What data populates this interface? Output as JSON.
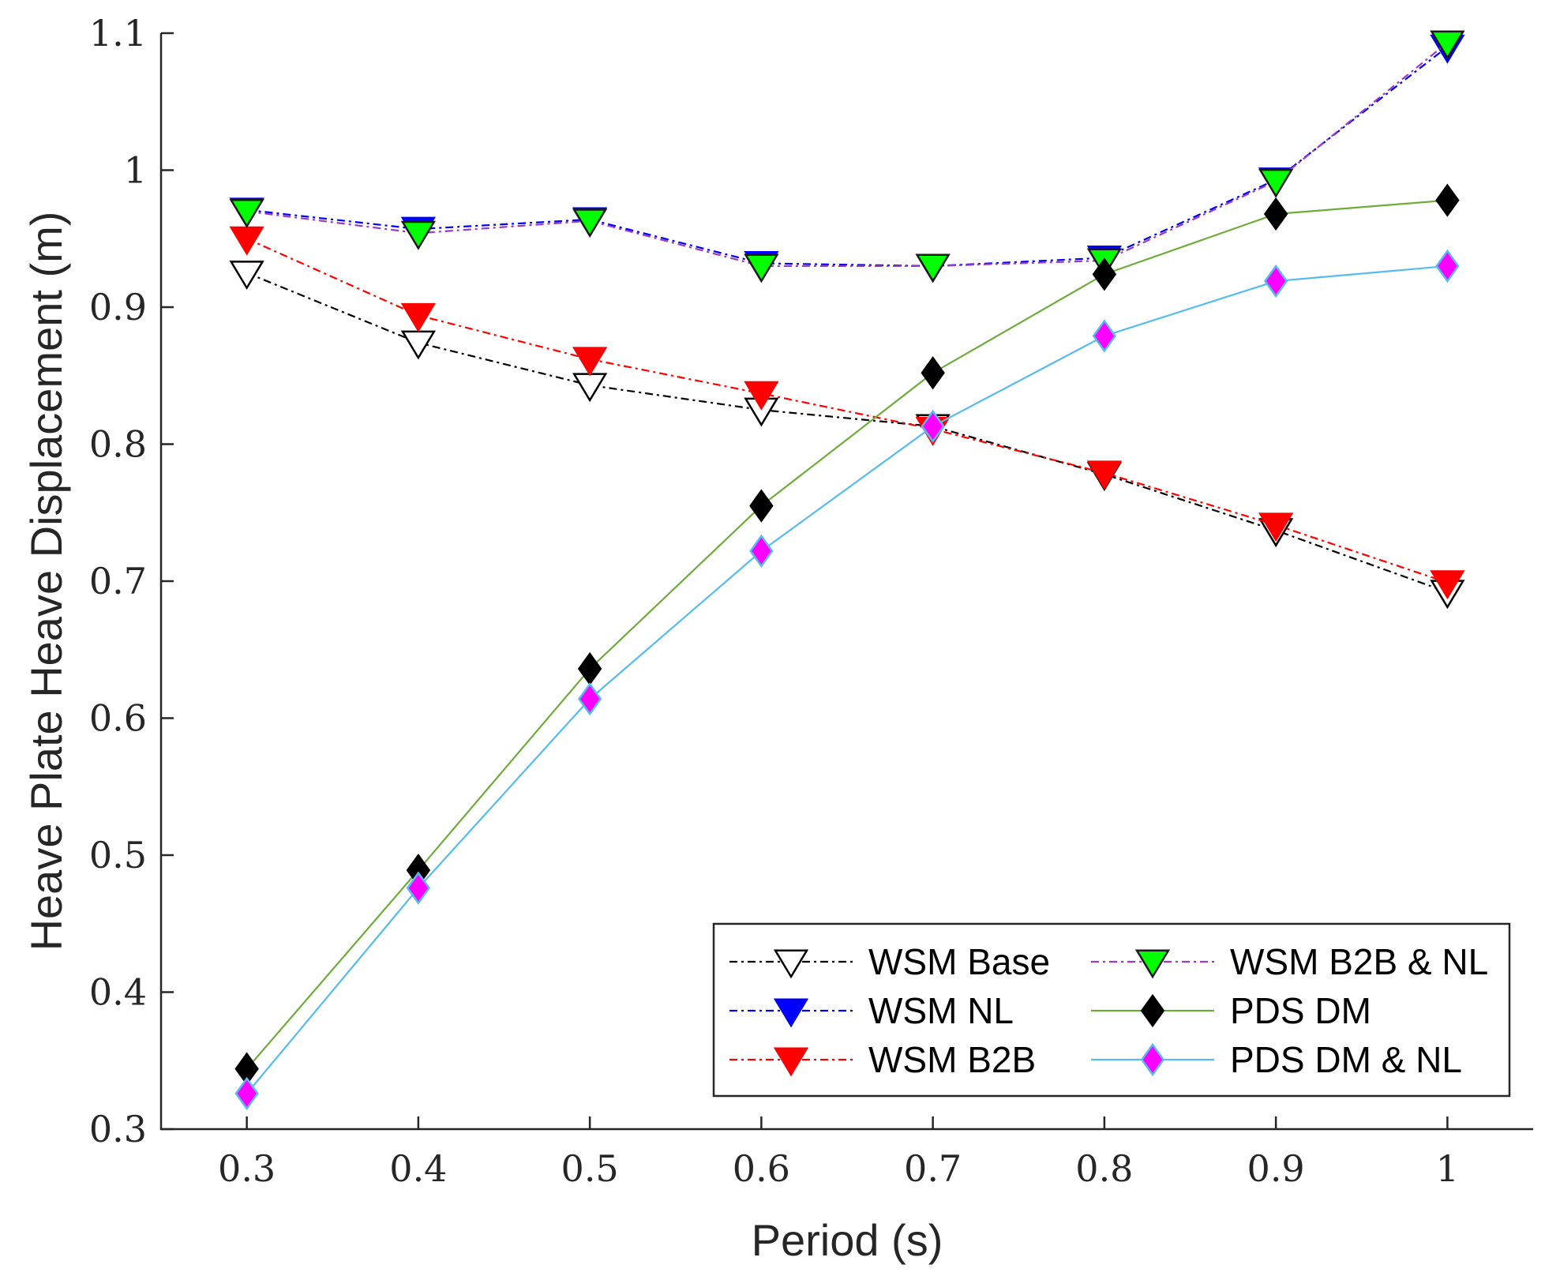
{
  "chart_data": {
    "type": "line",
    "title": "",
    "xlabel": "Period (s)",
    "ylabel": "Heave Plate Heave Displacement (m)",
    "xlim": [
      0.25,
      1.05
    ],
    "ylim": [
      0.3,
      1.1
    ],
    "xticks": [
      0.3,
      0.4,
      0.5,
      0.6,
      0.7,
      0.8,
      0.9,
      1.0
    ],
    "xtick_labels": [
      "0.3",
      "0.4",
      "0.5",
      "0.6",
      "0.7",
      "0.8",
      "0.9",
      "1"
    ],
    "yticks": [
      0.3,
      0.4,
      0.5,
      0.6,
      0.7,
      0.8,
      0.9,
      1.0,
      1.1
    ],
    "ytick_labels": [
      "0.3",
      "0.4",
      "0.5",
      "0.6",
      "0.7",
      "0.8",
      "0.9",
      "1",
      "1.1"
    ],
    "grid": false,
    "legend_location": "bottom-right",
    "legend_columns": 2,
    "x": [
      0.3,
      0.4,
      0.5,
      0.6,
      0.7,
      0.8,
      0.9,
      1.0
    ],
    "series": [
      {
        "name": "WSM Base",
        "line_color": "#000000",
        "line_style": "dashdot",
        "marker": "triangle-down",
        "marker_fill": "#ffffff",
        "marker_edge": "#000000",
        "values": [
          0.925,
          0.874,
          0.843,
          0.825,
          0.813,
          0.778,
          0.737,
          0.692
        ]
      },
      {
        "name": "WSM NL",
        "line_color": "#0000ff",
        "line_style": "dashdot",
        "marker": "triangle-down",
        "marker_fill": "#0000ff",
        "marker_edge": "#0000ff",
        "values": [
          0.971,
          0.957,
          0.964,
          0.932,
          0.93,
          0.936,
          0.993,
          1.09
        ]
      },
      {
        "name": "WSM B2B",
        "line_color": "#ff0000",
        "line_style": "dashdot",
        "marker": "triangle-down",
        "marker_fill": "#ff0000",
        "marker_edge": "#ff0000",
        "values": [
          0.95,
          0.894,
          0.862,
          0.837,
          0.811,
          0.779,
          0.741,
          0.699
        ]
      },
      {
        "name": "WSM B2B & NL",
        "line_color": "#9a3ac9",
        "line_style": "dashdot",
        "marker": "triangle-down",
        "marker_fill": "#00ff00",
        "marker_edge": "#1a1a1a",
        "values": [
          0.97,
          0.954,
          0.963,
          0.93,
          0.93,
          0.934,
          0.992,
          1.093
        ]
      },
      {
        "name": "PDS DM",
        "line_color": "#6eac3a",
        "line_style": "solid",
        "marker": "diamond",
        "marker_fill": "#000000",
        "marker_edge": "#000000",
        "values": [
          0.344,
          0.489,
          0.636,
          0.755,
          0.852,
          0.924,
          0.968,
          0.978
        ]
      },
      {
        "name": "PDS DM & NL",
        "line_color": "#55bbf0",
        "line_style": "solid",
        "marker": "diamond",
        "marker_fill": "#ff00ff",
        "marker_edge": "#55bbf0",
        "values": [
          0.326,
          0.476,
          0.614,
          0.722,
          0.813,
          0.879,
          0.919,
          0.93
        ]
      }
    ]
  }
}
